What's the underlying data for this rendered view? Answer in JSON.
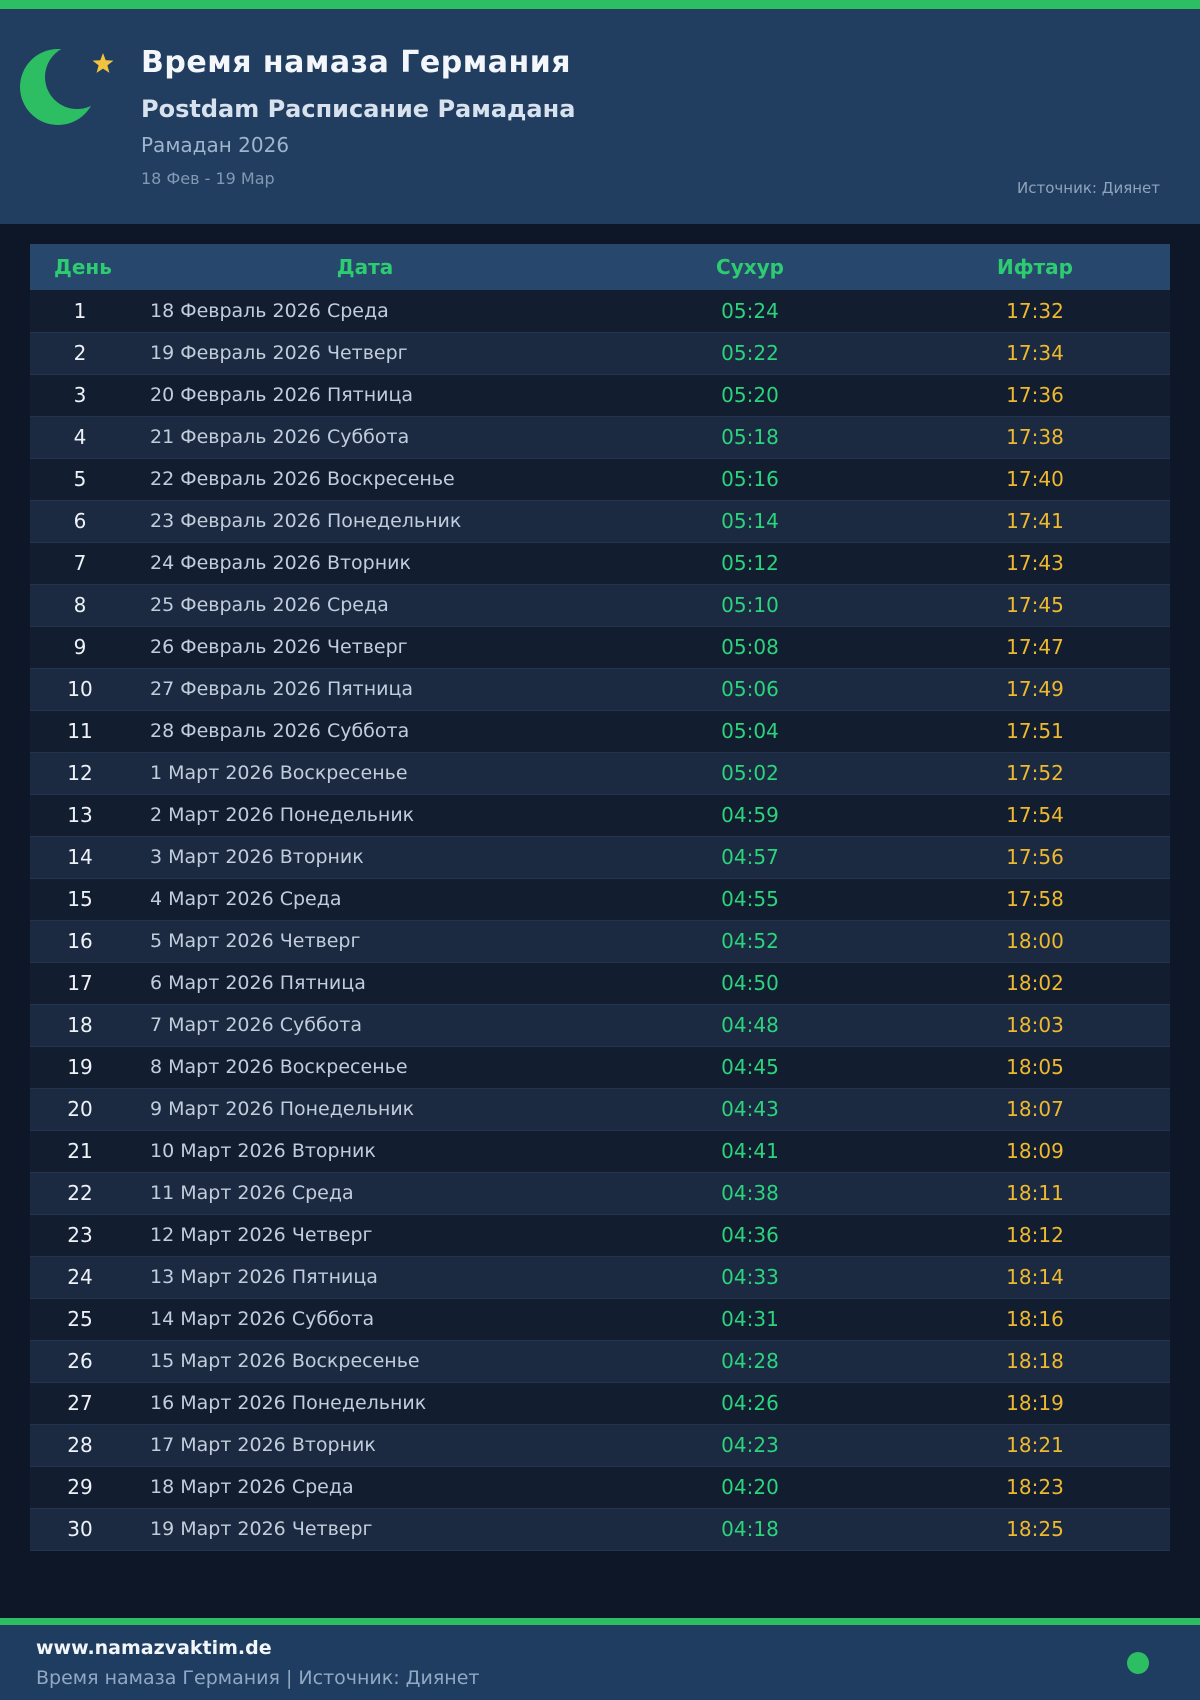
{
  "header": {
    "title": "Время намаза Германия",
    "subtitle": "Postdam Расписание Рамадана",
    "season": "Рамадан 2026",
    "date_range": "18 Фев - 19 Мар",
    "source": "Источник: Диянет"
  },
  "table": {
    "columns": [
      "День",
      "Дата",
      "Сухур",
      "Ифтар"
    ],
    "rows": [
      {
        "day": "1",
        "date": "18 Февраль 2026 Среда",
        "suhur": "05:24",
        "iftar": "17:32"
      },
      {
        "day": "2",
        "date": "19 Февраль 2026 Четверг",
        "suhur": "05:22",
        "iftar": "17:34"
      },
      {
        "day": "3",
        "date": "20 Февраль 2026 Пятница",
        "suhur": "05:20",
        "iftar": "17:36"
      },
      {
        "day": "4",
        "date": "21 Февраль 2026 Суббота",
        "suhur": "05:18",
        "iftar": "17:38"
      },
      {
        "day": "5",
        "date": "22 Февраль 2026 Воскресенье",
        "suhur": "05:16",
        "iftar": "17:40"
      },
      {
        "day": "6",
        "date": "23 Февраль 2026 Понедельник",
        "suhur": "05:14",
        "iftar": "17:41"
      },
      {
        "day": "7",
        "date": "24 Февраль 2026 Вторник",
        "suhur": "05:12",
        "iftar": "17:43"
      },
      {
        "day": "8",
        "date": "25 Февраль 2026 Среда",
        "suhur": "05:10",
        "iftar": "17:45"
      },
      {
        "day": "9",
        "date": "26 Февраль 2026 Четверг",
        "suhur": "05:08",
        "iftar": "17:47"
      },
      {
        "day": "10",
        "date": "27 Февраль 2026 Пятница",
        "suhur": "05:06",
        "iftar": "17:49"
      },
      {
        "day": "11",
        "date": "28 Февраль 2026 Суббота",
        "suhur": "05:04",
        "iftar": "17:51"
      },
      {
        "day": "12",
        "date": "1 Март 2026 Воскресенье",
        "suhur": "05:02",
        "iftar": "17:52"
      },
      {
        "day": "13",
        "date": "2 Март 2026 Понедельник",
        "suhur": "04:59",
        "iftar": "17:54"
      },
      {
        "day": "14",
        "date": "3 Март 2026 Вторник",
        "suhur": "04:57",
        "iftar": "17:56"
      },
      {
        "day": "15",
        "date": "4 Март 2026 Среда",
        "suhur": "04:55",
        "iftar": "17:58"
      },
      {
        "day": "16",
        "date": "5 Март 2026 Четверг",
        "suhur": "04:52",
        "iftar": "18:00"
      },
      {
        "day": "17",
        "date": "6 Март 2026 Пятница",
        "suhur": "04:50",
        "iftar": "18:02"
      },
      {
        "day": "18",
        "date": "7 Март 2026 Суббота",
        "suhur": "04:48",
        "iftar": "18:03"
      },
      {
        "day": "19",
        "date": "8 Март 2026 Воскресенье",
        "suhur": "04:45",
        "iftar": "18:05"
      },
      {
        "day": "20",
        "date": "9 Март 2026 Понедельник",
        "suhur": "04:43",
        "iftar": "18:07"
      },
      {
        "day": "21",
        "date": "10 Март 2026 Вторник",
        "suhur": "04:41",
        "iftar": "18:09"
      },
      {
        "day": "22",
        "date": "11 Март 2026 Среда",
        "suhur": "04:38",
        "iftar": "18:11"
      },
      {
        "day": "23",
        "date": "12 Март 2026 Четверг",
        "suhur": "04:36",
        "iftar": "18:12"
      },
      {
        "day": "24",
        "date": "13 Март 2026 Пятница",
        "suhur": "04:33",
        "iftar": "18:14"
      },
      {
        "day": "25",
        "date": "14 Март 2026 Суббота",
        "suhur": "04:31",
        "iftar": "18:16"
      },
      {
        "day": "26",
        "date": "15 Март 2026 Воскресенье",
        "suhur": "04:28",
        "iftar": "18:18"
      },
      {
        "day": "27",
        "date": "16 Март 2026 Понедельник",
        "suhur": "04:26",
        "iftar": "18:19"
      },
      {
        "day": "28",
        "date": "17 Март 2026 Вторник",
        "suhur": "04:23",
        "iftar": "18:21"
      },
      {
        "day": "29",
        "date": "18 Март 2026 Среда",
        "suhur": "04:20",
        "iftar": "18:23"
      },
      {
        "day": "30",
        "date": "19 Март 2026 Четверг",
        "suhur": "04:18",
        "iftar": "18:25"
      }
    ]
  },
  "footer": {
    "website": "www.namazvaktim.de",
    "tagline": "Время намаза Германия | Источник: Диянет"
  },
  "icons": {
    "crescent_moon_star": "crescent-moon-star-icon",
    "status_dot": "green-dot-icon"
  },
  "colors": {
    "accent_green": "#2dbe64",
    "table_header_green": "#2ecc71",
    "suhur_green": "#2bd47c",
    "iftar_yellow": "#eeb92e",
    "star_gold": "#f2c43d",
    "header_bg": "#213e60",
    "page_bg": "#0d1727",
    "row_odd_bg": "#121d2f",
    "row_even_bg": "#1b2a41",
    "footer_bg": "#1f3d60"
  }
}
